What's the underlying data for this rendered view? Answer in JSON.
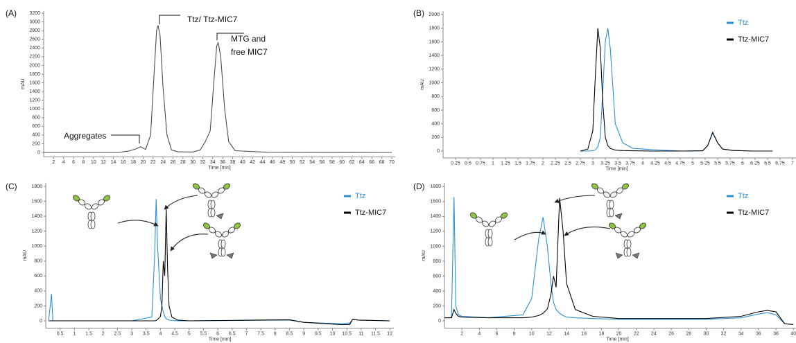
{
  "chart_data": [
    {
      "type": "line",
      "panel_label": "(A)",
      "y_label": "mAU",
      "x_label": "Time [min]",
      "annotations": [
        "Aggregates",
        "Ttz/ Ttz-MIC7",
        "MTG and",
        "free MIC7"
      ],
      "x": [
        0,
        15,
        17,
        18.5,
        19.5,
        20.5,
        21.5,
        22.2,
        22.7,
        23,
        23.4,
        24,
        24.8,
        25.7,
        27,
        30,
        31.5,
        32.5,
        33.5,
        34.2,
        34.8,
        35.1,
        35.6,
        36.4,
        37.2,
        38.5,
        45,
        70
      ],
      "series": [
        {
          "color": "#4a4a55",
          "values": [
            0,
            0,
            30,
            80,
            130,
            70,
            400,
            1800,
            2800,
            2920,
            2700,
            1500,
            400,
            60,
            15,
            10,
            60,
            250,
            500,
            1600,
            2450,
            2520,
            2200,
            1000,
            250,
            40,
            5,
            0
          ]
        }
      ],
      "xlim": [
        0,
        70.7
      ],
      "ylim": [
        -100,
        3250
      ],
      "xticks": [
        2,
        4,
        6,
        8,
        10,
        12,
        14,
        16,
        18,
        20,
        22,
        24,
        26,
        28,
        30,
        32,
        34,
        36,
        38,
        40,
        42,
        44,
        46,
        48,
        50,
        52,
        54,
        56,
        58,
        60,
        62,
        64,
        66,
        68,
        70
      ],
      "yticks": [
        0,
        200,
        400,
        600,
        800,
        1000,
        1200,
        1400,
        1600,
        1800,
        2000,
        2200,
        2400,
        2600,
        2800,
        3000,
        3200
      ]
    },
    {
      "type": "line",
      "panel_label": "(B)",
      "y_label": "mAU",
      "x_label": "Time [min]",
      "x": [
        2.75,
        2.9,
        3.0,
        3.05,
        3.1,
        3.15,
        3.2,
        3.25,
        3.3,
        3.35,
        3.45,
        3.6,
        3.8,
        4.2,
        4.8,
        5.2,
        5.3,
        5.4,
        5.5,
        5.6,
        5.8,
        6.2,
        6.6
      ],
      "series": [
        {
          "name": "Ttz",
          "color": "#2b8fd6",
          "values": [
            0,
            0,
            5,
            20,
            60,
            200,
            900,
            1600,
            1800,
            1500,
            400,
            120,
            40,
            20,
            0,
            5,
            80,
            280,
            120,
            30,
            10,
            0,
            0
          ]
        },
        {
          "name": "Ttz-MIC7",
          "color": "#000000",
          "values": [
            0,
            30,
            300,
            1100,
            1800,
            1500,
            700,
            200,
            80,
            40,
            15,
            8,
            5,
            0,
            0,
            5,
            80,
            270,
            120,
            30,
            10,
            0,
            0
          ]
        }
      ],
      "xlim": [
        0,
        7.07
      ],
      "ylim": [
        -100,
        2050
      ],
      "xticks": [
        0.25,
        0.5,
        0.75,
        1,
        1.25,
        1.5,
        1.75,
        2,
        2.25,
        2.5,
        2.75,
        3,
        3.25,
        3.5,
        3.75,
        4,
        4.25,
        4.5,
        4.75,
        5,
        5.25,
        5.5,
        5.75,
        6,
        6.25,
        6.5,
        6.75,
        7
      ],
      "yticks": [
        0,
        200,
        400,
        600,
        800,
        1000,
        1200,
        1400,
        1600,
        1800,
        2000
      ]
    },
    {
      "type": "line",
      "panel_label": "(C)",
      "y_label": "mAU",
      "x_label": "Time [min]",
      "x": [
        0.1,
        0.2,
        0.25,
        0.35,
        1,
        3,
        3.7,
        3.8,
        3.85,
        3.9,
        4.0,
        4.05,
        4.1,
        4.15,
        4.2,
        4.25,
        4.3,
        4.4,
        4.6,
        5,
        8.5,
        9,
        10.3,
        10.6,
        10.7,
        10.9,
        12
      ],
      "series": [
        {
          "name": "Ttz",
          "color": "#2b8fd6",
          "values": [
            0,
            360,
            0,
            0,
            0,
            0,
            50,
            900,
            1630,
            1000,
            300,
            200,
            120,
            60,
            30,
            20,
            10,
            5,
            0,
            0,
            10,
            -20,
            -40,
            -30,
            20,
            10,
            0
          ]
        },
        {
          "name": "Ttz-MIC7",
          "color": "#000000",
          "values": [
            0,
            0,
            0,
            0,
            0,
            0,
            0,
            0,
            5,
            20,
            60,
            200,
            800,
            600,
            1500,
            700,
            200,
            50,
            10,
            0,
            15,
            -20,
            -50,
            -50,
            20,
            10,
            0
          ]
        }
      ],
      "xlim": [
        0,
        12.14
      ],
      "ylim": [
        -100,
        1850
      ],
      "xticks": [
        0.5,
        1,
        1.5,
        2,
        2.5,
        3,
        3.5,
        4,
        4.5,
        5,
        5.5,
        6,
        6.5,
        7,
        7.5,
        8,
        8.5,
        9,
        9.5,
        10,
        10.5,
        11,
        11.5,
        12
      ],
      "yticks": [
        0,
        200,
        400,
        600,
        800,
        1000,
        1200,
        1400,
        1600,
        1800
      ]
    },
    {
      "type": "line",
      "panel_label": "(D)",
      "y_label": "mAU",
      "x_label": "Time [min]",
      "x": [
        0,
        0.8,
        1.1,
        1.3,
        1.6,
        2,
        5,
        9,
        10,
        10.8,
        11.3,
        11.8,
        12.2,
        12.5,
        12.8,
        13.2,
        13.6,
        14,
        15,
        17,
        20,
        30,
        34,
        36,
        37,
        38,
        39,
        40
      ],
      "series": [
        {
          "name": "Ttz",
          "color": "#2b8fd6",
          "values": [
            40,
            40,
            1660,
            200,
            80,
            60,
            40,
            80,
            300,
            1100,
            1390,
            1000,
            500,
            250,
            150,
            100,
            70,
            50,
            40,
            30,
            20,
            20,
            40,
            90,
            110,
            80,
            -40,
            -50
          ]
        },
        {
          "name": "Ttz-MIC7",
          "color": "#000000",
          "values": [
            40,
            40,
            150,
            100,
            60,
            50,
            40,
            40,
            50,
            70,
            100,
            160,
            350,
            600,
            450,
            1650,
            1200,
            500,
            150,
            60,
            30,
            30,
            60,
            120,
            140,
            120,
            -40,
            -50
          ]
        }
      ],
      "xlim": [
        0,
        40.3
      ],
      "ylim": [
        -100,
        1850
      ],
      "xticks": [
        2,
        4,
        6,
        8,
        10,
        12,
        14,
        16,
        18,
        20,
        22,
        24,
        26,
        28,
        30,
        32,
        34,
        36,
        38,
        40
      ],
      "yticks": [
        0,
        200,
        400,
        600,
        800,
        1000,
        1200,
        1400,
        1600,
        1800
      ]
    }
  ]
}
